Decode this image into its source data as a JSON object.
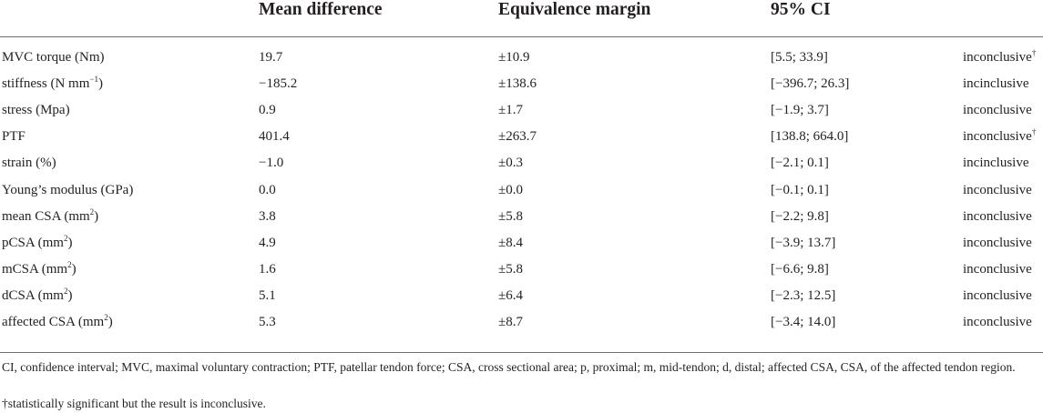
{
  "table": {
    "headers": [
      "",
      "Mean difference",
      "Equivalence margin",
      "95% CI",
      ""
    ],
    "rows": [
      {
        "variable": "MVC torque (Nm)",
        "sup": "",
        "unit_end": "",
        "mean_difference": "19.7",
        "equivalence_margin": "±10.9",
        "ci": "[5.5; 33.9]",
        "result": "inconclusive",
        "result_sup": "†"
      },
      {
        "variable": "stiffness (N mm",
        "sup": "−1",
        "unit_end": ")",
        "mean_difference": "−185.2",
        "equivalence_margin": "±138.6",
        "ci": "[−396.7; 26.3]",
        "result": "incinclusive",
        "result_sup": ""
      },
      {
        "variable": "stress (Mpa)",
        "sup": "",
        "unit_end": "",
        "mean_difference": "0.9",
        "equivalence_margin": "±1.7",
        "ci": "[−1.9; 3.7]",
        "result": "inconclusive",
        "result_sup": ""
      },
      {
        "variable": "PTF",
        "sup": "",
        "unit_end": "",
        "mean_difference": "401.4",
        "equivalence_margin": "±263.7",
        "ci": "[138.8; 664.0]",
        "result": "inconclusive",
        "result_sup": "†"
      },
      {
        "variable": "strain (%)",
        "sup": "",
        "unit_end": "",
        "mean_difference": "−1.0",
        "equivalence_margin": "±0.3",
        "ci": "[−2.1; 0.1]",
        "result": "incinclusive",
        "result_sup": ""
      },
      {
        "variable": "Young’s modulus (GPa)",
        "sup": "",
        "unit_end": "",
        "mean_difference": "0.0",
        "equivalence_margin": "±0.0",
        "ci": "[−0.1; 0.1]",
        "result": "inconclusive",
        "result_sup": ""
      },
      {
        "variable": "mean CSA (mm",
        "sup": "2",
        "unit_end": ")",
        "mean_difference": "3.8",
        "equivalence_margin": "±5.8",
        "ci": "[−2.2; 9.8]",
        "result": "inconclusive",
        "result_sup": ""
      },
      {
        "variable": "pCSA (mm",
        "sup": "2",
        "unit_end": ")",
        "mean_difference": "4.9",
        "equivalence_margin": "±8.4",
        "ci": "[−3.9; 13.7]",
        "result": "inconclusive",
        "result_sup": ""
      },
      {
        "variable": "mCSA (mm",
        "sup": "2",
        "unit_end": ")",
        "mean_difference": "1.6",
        "equivalence_margin": "±5.8",
        "ci": "[−6.6; 9.8]",
        "result": "inconclusive",
        "result_sup": ""
      },
      {
        "variable": "dCSA (mm",
        "sup": "2",
        "unit_end": ")",
        "mean_difference": "5.1",
        "equivalence_margin": "±6.4",
        "ci": "[−2.3; 12.5]",
        "result": "inconclusive",
        "result_sup": ""
      },
      {
        "variable": "affected CSA (mm",
        "sup": "2",
        "unit_end": ")",
        "mean_difference": "5.3",
        "equivalence_margin": "±8.7",
        "ci": "[−3.4; 14.0]",
        "result": "inconclusive",
        "result_sup": ""
      }
    ]
  },
  "footnotes": {
    "abbreviations": "CI, confidence interval; MVC, maximal voluntary contraction; PTF, patellar tendon force; CSA, cross sectional area; p, proximal; m, mid-tendon; d, distal; affected CSA, CSA, of the affected tendon region.",
    "dagger_mark": "†",
    "dagger_text": "statistically significant but the result is inconclusive."
  }
}
